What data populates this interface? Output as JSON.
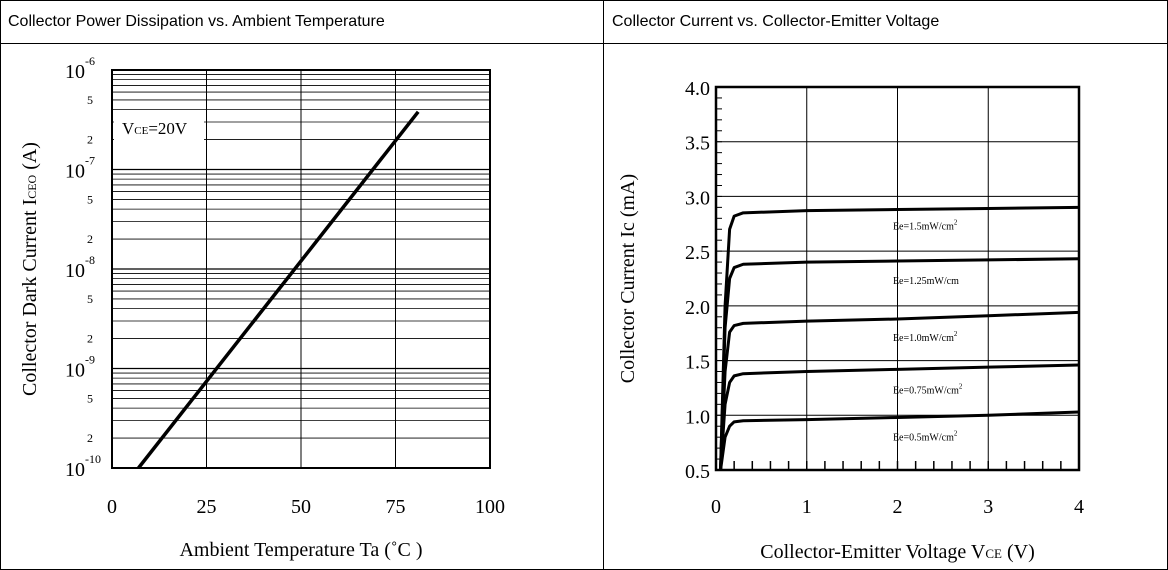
{
  "panels": {
    "left_header": "Collector Power Dissipation vs. Ambient Temperature",
    "right_header": "Collector Current vs. Collector-Emitter Voltage"
  },
  "chart_data": [
    {
      "type": "line",
      "title": "Collector Power Dissipation vs. Ambient Temperature",
      "xlabel": "Ambient Temperature Ta (˚C )",
      "ylabel_main": "Collector Dark Current I",
      "ylabel_sub": "CEO",
      "ylabel_tail": " (A)",
      "y_scale": "log",
      "xlim": [
        0,
        100
      ],
      "ylim": [
        1e-10,
        1e-06
      ],
      "x_ticks": [
        "0",
        "25",
        "50",
        "75",
        "100"
      ],
      "y_decades": [
        {
          "base": "10",
          "exp": "-10"
        },
        {
          "base": "10",
          "exp": "-9"
        },
        {
          "base": "10",
          "exp": "-8"
        },
        {
          "base": "10",
          "exp": "-7"
        },
        {
          "base": "10",
          "exp": "-6"
        }
      ],
      "y_minor_labels": [
        "2",
        "5"
      ],
      "annotation": {
        "prefix": "V",
        "sub": "CE",
        "suffix": "=20V"
      },
      "grid": true,
      "series": [
        {
          "x": [
            7,
            81
          ],
          "y": [
            1e-10,
            3.8e-07
          ]
        }
      ]
    },
    {
      "type": "line",
      "title": "Collector Current vs. Collector-Emitter Voltage",
      "xlabel_main": "Collector-Emitter Voltage V",
      "xlabel_sub": "CE",
      "xlabel_tail": " (V)",
      "ylabel": "Collector Current Ic (mA)",
      "xlim": [
        0,
        4
      ],
      "ylim": [
        0.5,
        4.0
      ],
      "x_ticks": [
        "0",
        "1",
        "2",
        "3",
        "4"
      ],
      "y_ticks": [
        "0.5",
        "1.0",
        "1.5",
        "2.0",
        "2.5",
        "3.0",
        "3.5",
        "4.0"
      ],
      "grid": true,
      "series": [
        {
          "name": "Ee=1.5mW/cm²",
          "x": [
            0.05,
            0.1,
            0.15,
            0.2,
            0.3,
            1,
            2,
            3,
            4
          ],
          "y": [
            0.5,
            2.0,
            2.7,
            2.82,
            2.85,
            2.87,
            2.88,
            2.89,
            2.9
          ]
        },
        {
          "name": "Ee=1.25mW/cm²",
          "x": [
            0.05,
            0.1,
            0.15,
            0.2,
            0.3,
            1,
            2,
            3,
            4
          ],
          "y": [
            0.5,
            1.8,
            2.25,
            2.35,
            2.38,
            2.4,
            2.41,
            2.42,
            2.43
          ]
        },
        {
          "name": "Ee=1.0mW/cm²",
          "x": [
            0.05,
            0.1,
            0.15,
            0.2,
            0.3,
            1,
            2,
            3,
            4
          ],
          "y": [
            0.5,
            1.4,
            1.76,
            1.82,
            1.84,
            1.86,
            1.88,
            1.91,
            1.94
          ]
        },
        {
          "name": "Ee=0.75mW/cm²",
          "x": [
            0.05,
            0.1,
            0.15,
            0.2,
            0.3,
            1,
            2,
            3,
            4
          ],
          "y": [
            0.5,
            1.1,
            1.3,
            1.36,
            1.38,
            1.4,
            1.42,
            1.44,
            1.46
          ]
        },
        {
          "name": "Ee=0.5mW/cm²",
          "x": [
            0.05,
            0.1,
            0.15,
            0.2,
            0.3,
            1,
            2,
            3,
            4
          ],
          "y": [
            0.5,
            0.8,
            0.9,
            0.94,
            0.95,
            0.96,
            0.98,
            1.0,
            1.03
          ]
        }
      ],
      "series_labels": [
        {
          "main": "Ee=1.5mW/cm",
          "sup": "2",
          "at_y": 2.7
        },
        {
          "main": "Ee=1.25mW/cm",
          "sup": "",
          "at_y": 2.2
        },
        {
          "main": "Ee=1.0mW/cm",
          "sup": "2",
          "at_y": 1.68
        },
        {
          "main": "Ee=0.75mW/cm",
          "sup": "2",
          "at_y": 1.2
        },
        {
          "main": "Ee=0.5mW/cm",
          "sup": "2",
          "at_y": 0.77
        }
      ]
    }
  ]
}
